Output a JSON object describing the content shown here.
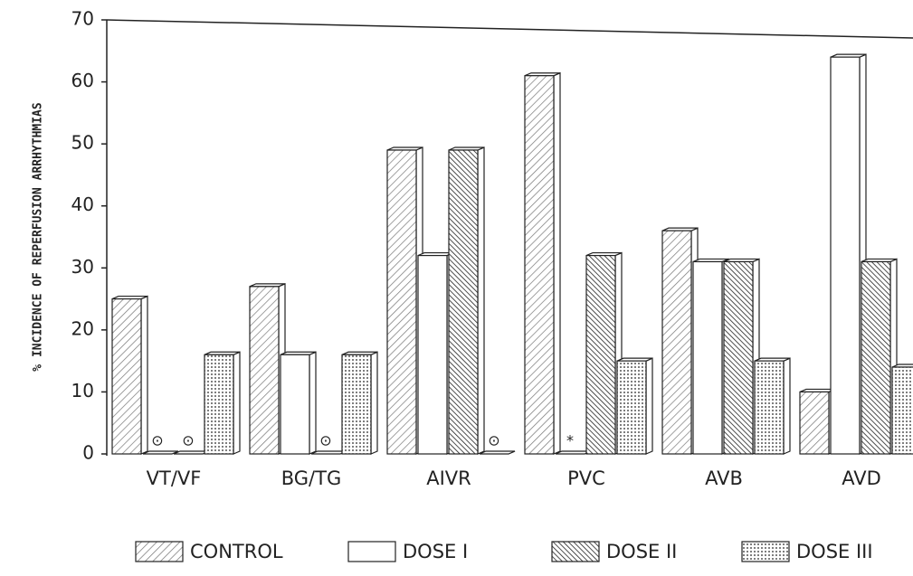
{
  "chart_data": {
    "type": "bar",
    "ylabel": "% INCIDENCE OF REPERFUSION ARRHYTHMIAS",
    "categories": [
      "VT/VF",
      "BG/TG",
      "AIVR",
      "PVC",
      "AVB",
      "AVD"
    ],
    "series": [
      {
        "name": "CONTROL",
        "color": "#222222",
        "pattern": "forward-hatch",
        "values": [
          25,
          27,
          49,
          61,
          36,
          10
        ]
      },
      {
        "name": "DOSE I",
        "color": "#222222",
        "pattern": "none",
        "values": [
          0,
          16,
          32,
          0,
          31,
          64
        ]
      },
      {
        "name": "DOSE II",
        "color": "#222222",
        "pattern": "back-hatch",
        "values": [
          0,
          0,
          49,
          32,
          31,
          31
        ]
      },
      {
        "name": "DOSE III",
        "color": "#222222",
        "pattern": "dots",
        "values": [
          16,
          16,
          0,
          15,
          15,
          14
        ]
      }
    ],
    "markers": [
      {
        "category": 0,
        "series": 1,
        "text": "⊙"
      },
      {
        "category": 0,
        "series": 2,
        "text": "⊙"
      },
      {
        "category": 1,
        "series": 2,
        "text": "⊙"
      },
      {
        "category": 2,
        "series": 3,
        "text": "⊙"
      },
      {
        "category": 3,
        "series": 1,
        "text": "*"
      }
    ],
    "ylim": [
      0,
      70
    ],
    "yticks": [
      0,
      10,
      20,
      30,
      40,
      50,
      60,
      70
    ],
    "grid": false,
    "legend": "bottom"
  }
}
